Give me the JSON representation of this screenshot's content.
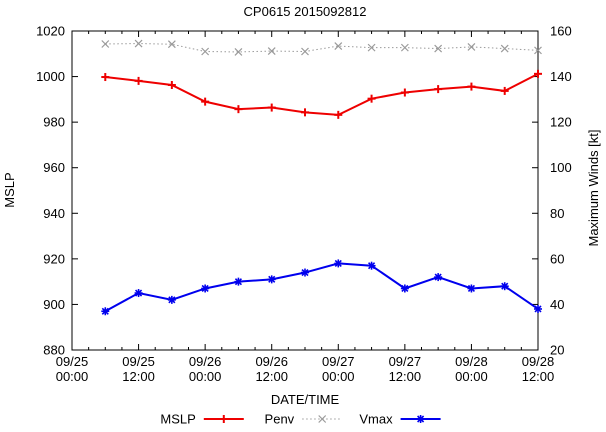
{
  "window": {
    "title": "CP0615 2015092812"
  },
  "chart_data": {
    "type": "line",
    "title": "CP0615 2015092812",
    "xlabel": "DATE/TIME",
    "ylabel_left": "MSLP",
    "ylabel_right": "Maximum Winds [kt]",
    "y_left_axis": {
      "min": 880,
      "max": 1020,
      "step": 20,
      "tick_labels": [
        "880",
        "900",
        "920",
        "940",
        "960",
        "980",
        "1000",
        "1020"
      ]
    },
    "y_right_axis": {
      "min": 20,
      "max": 160,
      "step": 20,
      "tick_labels": [
        "20",
        "40",
        "60",
        "80",
        "100",
        "120",
        "140",
        "160"
      ]
    },
    "x_axis": {
      "total_hours": 84,
      "major_step_hours": 12,
      "minor_step_hours": 3,
      "major_tick_labels": [
        {
          "date": "09/25",
          "time": "00:00"
        },
        {
          "date": "09/25",
          "time": "12:00"
        },
        {
          "date": "09/26",
          "time": "00:00"
        },
        {
          "date": "09/26",
          "time": "12:00"
        },
        {
          "date": "09/27",
          "time": "00:00"
        },
        {
          "date": "09/27",
          "time": "12:00"
        },
        {
          "date": "09/28",
          "time": "00:00"
        },
        {
          "date": "09/28",
          "time": "12:00"
        }
      ]
    },
    "data_start_hour": 6,
    "data_step_hours": 6,
    "categories": [
      "09/25 06:00",
      "09/25 12:00",
      "09/25 18:00",
      "09/26 00:00",
      "09/26 06:00",
      "09/26 12:00",
      "09/26 18:00",
      "09/27 00:00",
      "09/27 06:00",
      "09/27 12:00",
      "09/27 18:00",
      "09/28 00:00",
      "09/28 06:00",
      "09/28 12:00"
    ],
    "series": [
      {
        "name": "MSLP",
        "axis": "left",
        "color": "#ee0000",
        "line_style": "solid",
        "marker": "plus",
        "values": [
          999.8,
          998.1,
          996.3,
          989.0,
          985.7,
          986.4,
          984.3,
          983.2,
          990.3,
          993.0,
          994.5,
          995.6,
          993.7,
          1001.2
        ]
      },
      {
        "name": "Penv",
        "axis": "left",
        "color": "#9a9a9a",
        "line_style": "dotted",
        "marker": "cross",
        "values": [
          1014.3,
          1014.5,
          1014.2,
          1011.0,
          1010.8,
          1011.2,
          1011.0,
          1013.4,
          1012.7,
          1012.7,
          1012.3,
          1013.0,
          1012.3,
          1011.5
        ]
      },
      {
        "name": "Vmax",
        "axis": "right",
        "color": "#0000ee",
        "line_style": "solid",
        "marker": "asterisk",
        "values": [
          37,
          45,
          42,
          47,
          50,
          51,
          54,
          58,
          57,
          47,
          52,
          47,
          48,
          38
        ]
      }
    ],
    "legend": {
      "position": "bottom-center",
      "entries": [
        "MSLP",
        "Penv",
        "Vmax"
      ]
    },
    "colors": {
      "axis": "#000000",
      "background": "#ffffff",
      "mslp": "#ee0000",
      "penv": "#9a9a9a",
      "vmax": "#0000ee"
    }
  }
}
